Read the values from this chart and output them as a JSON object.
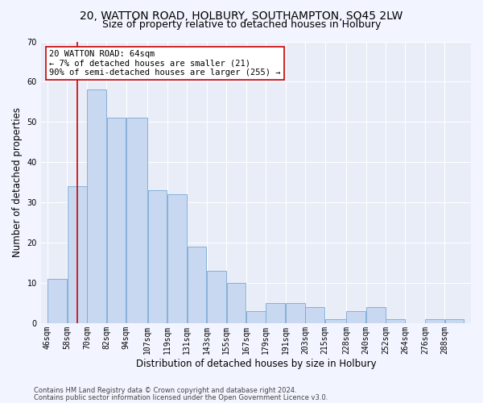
{
  "title1": "20, WATTON ROAD, HOLBURY, SOUTHAMPTON, SO45 2LW",
  "title2": "Size of property relative to detached houses in Holbury",
  "xlabel": "Distribution of detached houses by size in Holbury",
  "ylabel": "Number of detached properties",
  "categories": [
    "46sqm",
    "58sqm",
    "70sqm",
    "82sqm",
    "94sqm",
    "107sqm",
    "119sqm",
    "131sqm",
    "143sqm",
    "155sqm",
    "167sqm",
    "179sqm",
    "191sqm",
    "203sqm",
    "215sqm",
    "228sqm",
    "240sqm",
    "252sqm",
    "264sqm",
    "276sqm",
    "288sqm"
  ],
  "values": [
    11,
    34,
    58,
    51,
    51,
    33,
    32,
    19,
    13,
    10,
    3,
    5,
    5,
    4,
    1,
    3,
    4,
    1,
    0,
    1,
    1
  ],
  "bar_color": "#c8d8f0",
  "bar_edge_color": "#7aa8d4",
  "annotation_box_text": "20 WATTON ROAD: 64sqm\n← 7% of detached houses are smaller (21)\n90% of semi-detached houses are larger (255) →",
  "footer1": "Contains HM Land Registry data © Crown copyright and database right 2024.",
  "footer2": "Contains public sector information licensed under the Open Government Licence v3.0.",
  "ylim": [
    0,
    70
  ],
  "bg_color": "#f2f5ff",
  "plot_bg_color": "#e8edf8",
  "grid_color": "#ffffff",
  "red_line_color": "#cc0000",
  "annotation_box_edge_color": "#cc0000",
  "title_fontsize": 10,
  "subtitle_fontsize": 9,
  "tick_fontsize": 7,
  "ylabel_fontsize": 8.5,
  "xlabel_fontsize": 8.5,
  "footer_fontsize": 6,
  "annotation_fontsize": 7.5
}
